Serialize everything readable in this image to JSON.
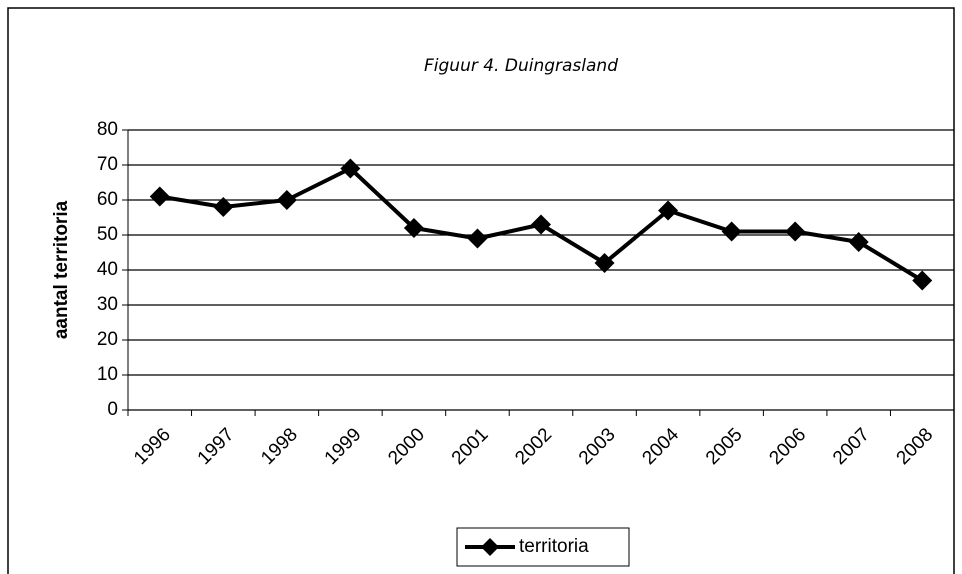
{
  "chart_data": {
    "type": "line",
    "title": "Figuur 4. Duingrasland",
    "y_label": "aantal territoria",
    "categories": [
      "1996",
      "1997",
      "1998",
      "1999",
      "2000",
      "2001",
      "2002",
      "2003",
      "2004",
      "2005",
      "2006",
      "2007",
      "2008"
    ],
    "series": [
      {
        "name": "territoria",
        "color": "#000000",
        "values": [
          61,
          58,
          60,
          69,
          52,
          49,
          53,
          42,
          57,
          51,
          51,
          48,
          37
        ]
      }
    ],
    "ylim": [
      0,
      80
    ],
    "yticks": [
      0,
      10,
      20,
      30,
      40,
      50,
      60,
      70,
      80
    ],
    "grid": true,
    "legend": "bottom"
  }
}
